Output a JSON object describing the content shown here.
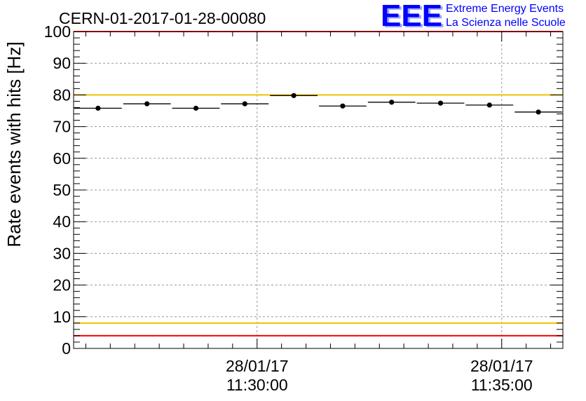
{
  "title": "CERN-01-2017-01-28-00080",
  "logo": {
    "mark": "EEE",
    "line1": "Extreme Energy Events",
    "line2": "La Scienza nelle Scuole",
    "color": "#0000ff"
  },
  "chart_data": {
    "type": "scatter",
    "title": "CERN-01-2017-01-28-00080",
    "ylabel": "Rate events with hits [Hz]",
    "xlabel": "",
    "ylim": [
      0,
      100
    ],
    "yticks": [
      0,
      10,
      20,
      30,
      40,
      50,
      60,
      70,
      80,
      90,
      100
    ],
    "xlim_minutes": [
      0,
      10
    ],
    "xticks": [
      {
        "date": "28/01/17",
        "time": "11:30:00",
        "minute": 3.75
      },
      {
        "date": "28/01/17",
        "time": "11:35:00",
        "minute": 8.75
      }
    ],
    "grid": true,
    "points": [
      {
        "x": 0.5,
        "y": 75.8,
        "xerr": 0.5,
        "yerr": 0.7
      },
      {
        "x": 1.5,
        "y": 77.2,
        "xerr": 0.5,
        "yerr": 0.7
      },
      {
        "x": 2.5,
        "y": 75.8,
        "xerr": 0.5,
        "yerr": 0.7
      },
      {
        "x": 3.5,
        "y": 77.2,
        "xerr": 0.5,
        "yerr": 0.7
      },
      {
        "x": 4.5,
        "y": 79.8,
        "xerr": 0.5,
        "yerr": 0.7
      },
      {
        "x": 5.5,
        "y": 76.5,
        "xerr": 0.5,
        "yerr": 0.7
      },
      {
        "x": 6.5,
        "y": 77.7,
        "xerr": 0.5,
        "yerr": 0.7
      },
      {
        "x": 7.5,
        "y": 77.4,
        "xerr": 0.5,
        "yerr": 0.7
      },
      {
        "x": 8.5,
        "y": 76.8,
        "xerr": 0.5,
        "yerr": 0.7
      },
      {
        "x": 9.5,
        "y": 74.6,
        "xerr": 0.5,
        "yerr": 0.7
      }
    ],
    "reference_lines": [
      {
        "y": 100,
        "color": "#ff0000"
      },
      {
        "y": 80,
        "color": "#f2c200"
      },
      {
        "y": 8,
        "color": "#f2c200"
      },
      {
        "y": 4,
        "color": "#ff0000"
      }
    ]
  }
}
